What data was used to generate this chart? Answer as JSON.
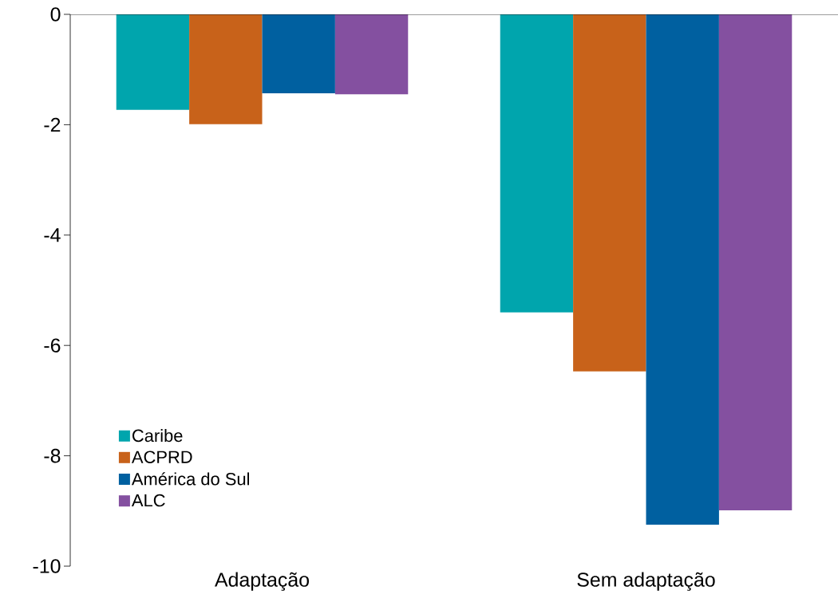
{
  "chart_data": {
    "type": "bar",
    "categories": [
      "Adaptação",
      "Sem adaptação"
    ],
    "series": [
      {
        "name": "Caribe",
        "color": "#00a5ad",
        "values": [
          -1.73,
          -5.4
        ]
      },
      {
        "name": "ACPRD",
        "color": "#c8621a",
        "values": [
          -1.99,
          -6.47
        ]
      },
      {
        "name": "América do Sul",
        "color": "#0060a0",
        "values": [
          -1.43,
          -9.25
        ]
      },
      {
        "name": "ALC",
        "color": "#8450a0",
        "values": [
          -1.45,
          -8.99
        ]
      }
    ],
    "ylim": [
      -10,
      0
    ],
    "yticks": [
      -10,
      -8,
      -6,
      -4,
      -2,
      0
    ],
    "grid": false,
    "legend": "bottom left"
  }
}
